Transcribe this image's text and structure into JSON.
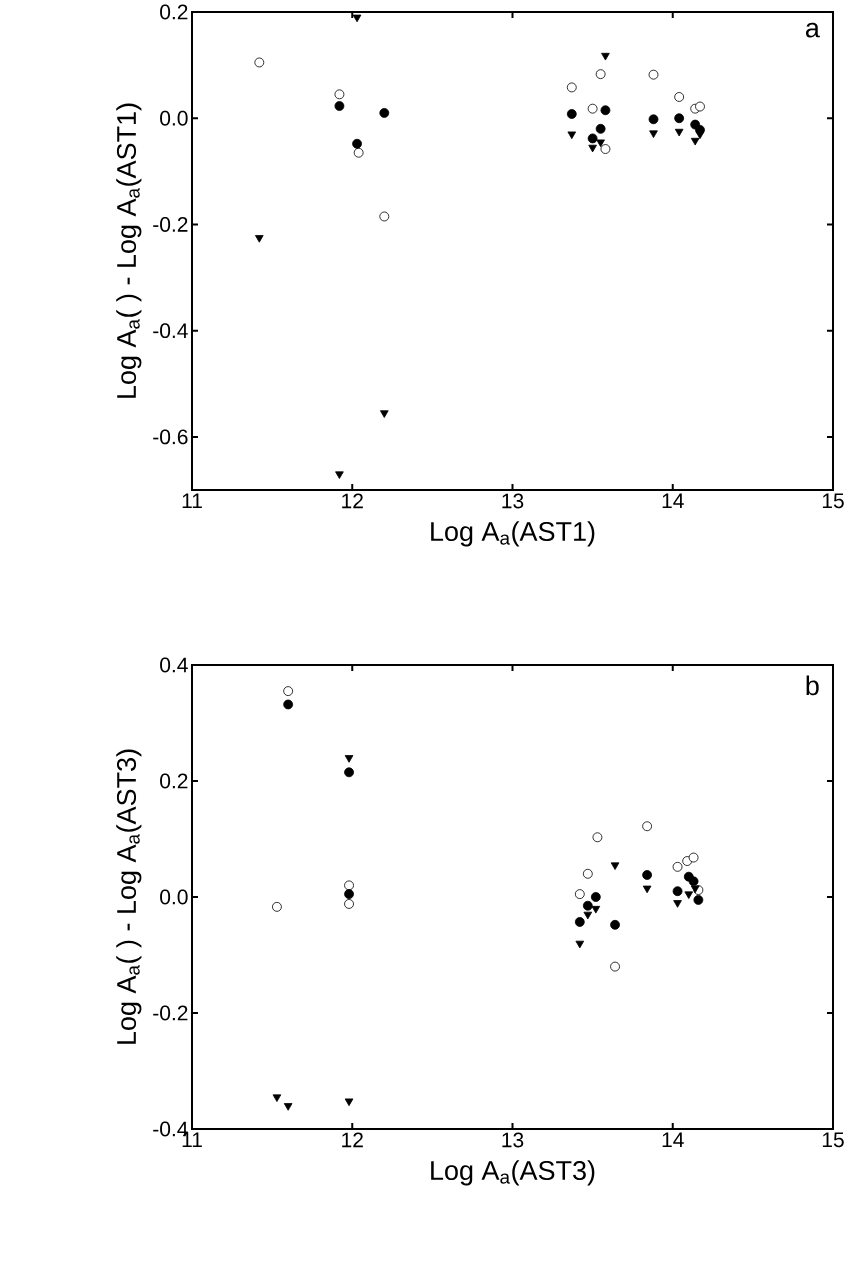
{
  "chart_data": [
    {
      "type": "scatter",
      "xlabel": "Log A$_{a}$(AST1)",
      "ylabel": "Log A$_{a}$( ) - Log A$_{a}$(AST1)",
      "annotations": [
        "a"
      ],
      "xlim": [
        11,
        15
      ],
      "ylim": [
        -0.7,
        0.2
      ],
      "xticks": [
        11,
        12,
        13,
        14,
        15
      ],
      "yticks": [
        {
          "value": -0.6,
          "label": "-0.6"
        },
        {
          "value": -0.4,
          "label": "-0.4"
        },
        {
          "value": -0.2,
          "label": "-0.2"
        },
        {
          "value": 0,
          "label": "0.0"
        },
        {
          "value": 0.2,
          "label": "0.2"
        }
      ],
      "series": [
        {
          "color": "#ffffff",
          "marker": "circle",
          "x": [
            11.42,
            11.92,
            12.04,
            12.2,
            13.37,
            13.5,
            13.55,
            13.58,
            13.88,
            14.04,
            14.14,
            14.17
          ],
          "values": [
            0.105,
            0.045,
            -0.065,
            -0.185,
            0.058,
            0.018,
            0.083,
            -0.058,
            0.082,
            0.04,
            0.018,
            0.022
          ]
        },
        {
          "color": "#000000",
          "marker": "circle",
          "x": [
            11.92,
            12.03,
            12.2,
            13.37,
            13.5,
            13.55,
            13.58,
            13.88,
            14.04,
            14.14,
            14.17
          ],
          "values": [
            0.023,
            -0.048,
            0.01,
            0.008,
            -0.038,
            -0.02,
            0.015,
            -0.002,
            0.0,
            -0.012,
            -0.022
          ]
        },
        {
          "color": "#000000",
          "marker": "triangle",
          "x": [
            11.42,
            11.92,
            12.03,
            12.2,
            13.37,
            13.5,
            13.55,
            13.58,
            13.88,
            14.04,
            14.14,
            14.17
          ],
          "values": [
            -0.225,
            -0.67,
            0.19,
            -0.555,
            -0.03,
            -0.055,
            -0.045,
            0.118,
            -0.028,
            -0.025,
            -0.042,
            -0.03
          ]
        }
      ]
    },
    {
      "type": "scatter",
      "xlabel": "Log A$_{a}$(AST3)",
      "ylabel": "Log A$_{a}$( ) - Log A$_{a}$(AST3)",
      "annotations": [
        "b"
      ],
      "xlim": [
        11,
        15
      ],
      "ylim": [
        -0.4,
        0.4
      ],
      "xticks": [
        11,
        12,
        13,
        14,
        15
      ],
      "yticks": [
        {
          "value": -0.4,
          "label": "-0.4"
        },
        {
          "value": -0.2,
          "label": "-0.2"
        },
        {
          "value": 0,
          "label": "0.0"
        },
        {
          "value": 0.2,
          "label": "0.2"
        },
        {
          "value": 0.4,
          "label": "0.4"
        }
      ],
      "series": [
        {
          "color": "#ffffff",
          "marker": "circle",
          "x": [
            11.53,
            11.6,
            11.98,
            11.98,
            13.42,
            13.47,
            13.53,
            13.64,
            13.84,
            14.03,
            14.09,
            14.13,
            14.16
          ],
          "values": [
            -0.017,
            0.355,
            0.02,
            -0.012,
            0.005,
            0.04,
            0.103,
            -0.12,
            0.122,
            0.052,
            0.062,
            0.068,
            0.012
          ]
        },
        {
          "color": "#000000",
          "marker": "circle",
          "x": [
            11.6,
            11.98,
            11.98,
            13.42,
            13.47,
            13.52,
            13.64,
            13.84,
            14.03,
            14.1,
            14.13,
            14.16
          ],
          "values": [
            0.332,
            0.215,
            0.005,
            -0.043,
            -0.015,
            0.0,
            -0.048,
            0.038,
            0.01,
            0.035,
            0.027,
            -0.005
          ]
        },
        {
          "color": "#000000",
          "marker": "triangle",
          "x": [
            11.53,
            11.6,
            11.98,
            11.98,
            13.42,
            13.47,
            13.52,
            13.64,
            13.84,
            14.03,
            14.1,
            14.14
          ],
          "values": [
            -0.345,
            -0.36,
            0.24,
            -0.352,
            -0.08,
            -0.03,
            -0.02,
            0.055,
            0.015,
            -0.01,
            0.005,
            0.015
          ]
        }
      ]
    }
  ]
}
